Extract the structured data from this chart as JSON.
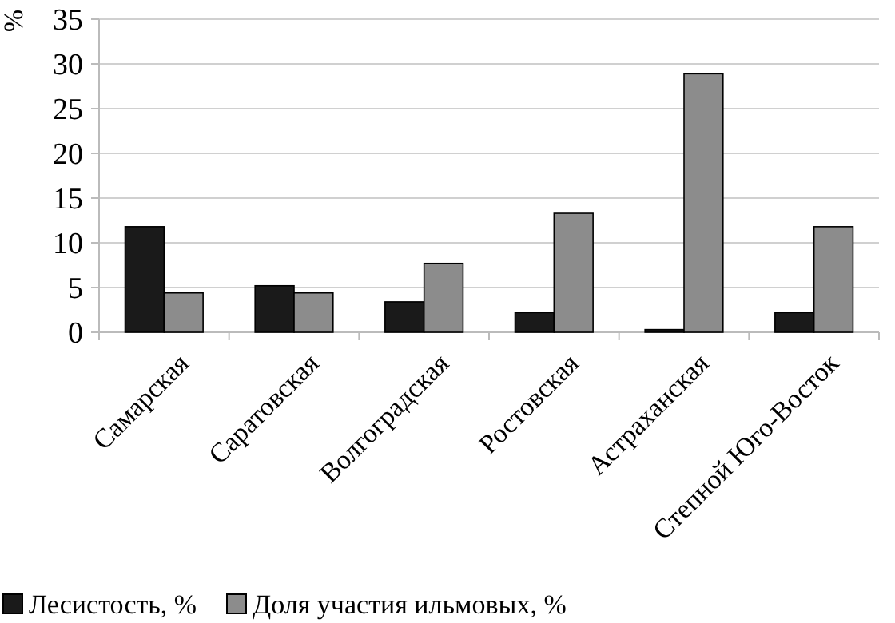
{
  "chart_data": {
    "type": "bar",
    "ylabel": "%",
    "categories": [
      "Самарская",
      "Саратовская",
      "Волгоградская",
      "Ростовская",
      "Астраханская",
      "Степной Юго-Восток"
    ],
    "series": [
      {
        "name": "Лесистость, %",
        "color": "#1a1a1a",
        "values": [
          11.8,
          5.2,
          3.4,
          2.2,
          0.3,
          2.2
        ]
      },
      {
        "name": "Доля участия ильмовых, %",
        "color": "#8c8c8c",
        "values": [
          4.4,
          4.4,
          7.7,
          13.3,
          28.9,
          11.8
        ]
      }
    ],
    "ylim": [
      0,
      35
    ],
    "yticks": [
      0,
      5,
      10,
      15,
      20,
      25,
      30,
      35
    ],
    "grid": "y",
    "legend": "bottom left"
  }
}
